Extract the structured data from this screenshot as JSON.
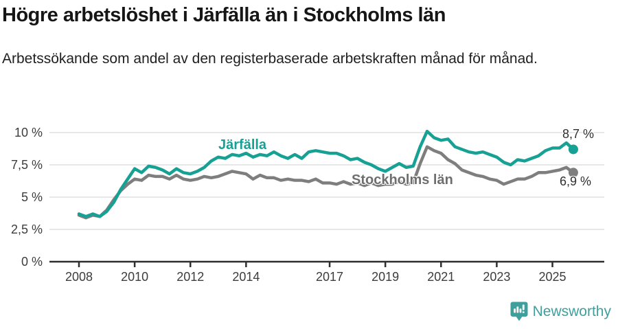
{
  "header": {
    "title": "Högre arbetslöshet i Järfälla än i Stockholms län",
    "subtitle": "Arbetssökande som andel av den registerbaserade arbetskraften månad för månad."
  },
  "colors": {
    "accent_teal": "#17a094",
    "line_gray": "#7e7e7e",
    "grid": "#dfdfdf",
    "axis": "#2e2e2e",
    "axis_text": "#3c3c3c",
    "logo_teal": "#3f9f9d"
  },
  "chart_data": {
    "type": "line",
    "title": "Högre arbetslöshet i Järfälla än i Stockholms län",
    "xlabel": "",
    "ylabel": "",
    "x_start": 2008.0,
    "x_step": 0.25,
    "xlim": [
      2008,
      2026
    ],
    "ylim": [
      0,
      10.5
    ],
    "grid": true,
    "legend_position": "inline-labels",
    "x_ticks": [
      2008,
      2010,
      2012,
      2014,
      2017,
      2019,
      2021,
      2023,
      2025
    ],
    "y_ticks": [
      {
        "v": 0,
        "label": "0 %"
      },
      {
        "v": 2.5,
        "label": "2,5 %"
      },
      {
        "v": 5,
        "label": "5 %"
      },
      {
        "v": 7.5,
        "label": "7,5 %"
      },
      {
        "v": 10,
        "label": "10 %"
      }
    ],
    "series": [
      {
        "name": "Järfälla",
        "color": "#17a094",
        "end_label": "8,7 %",
        "values": [
          3.7,
          3.5,
          3.7,
          3.5,
          3.9,
          4.6,
          5.6,
          6.4,
          7.2,
          6.9,
          7.4,
          7.3,
          7.1,
          6.8,
          7.2,
          6.9,
          6.8,
          7.0,
          7.3,
          7.8,
          8.1,
          8.0,
          8.3,
          8.2,
          8.4,
          8.1,
          8.3,
          8.2,
          8.5,
          8.2,
          8.0,
          8.3,
          8.0,
          8.5,
          8.6,
          8.5,
          8.4,
          8.4,
          8.2,
          7.9,
          8.0,
          7.7,
          7.5,
          7.2,
          7.0,
          7.3,
          7.6,
          7.3,
          7.4,
          8.9,
          10.1,
          9.6,
          9.4,
          9.5,
          8.9,
          8.7,
          8.5,
          8.4,
          8.5,
          8.3,
          8.1,
          7.7,
          7.5,
          7.9,
          7.8,
          8.0,
          8.2,
          8.6,
          8.8,
          8.8,
          9.2,
          8.7
        ]
      },
      {
        "name": "Stockholms län",
        "color": "#7e7e7e",
        "end_label": "6,9 %",
        "values": [
          3.6,
          3.4,
          3.6,
          3.5,
          4.0,
          4.8,
          5.5,
          6.0,
          6.4,
          6.3,
          6.7,
          6.6,
          6.6,
          6.4,
          6.7,
          6.4,
          6.3,
          6.4,
          6.6,
          6.5,
          6.6,
          6.8,
          7.0,
          6.9,
          6.8,
          6.4,
          6.7,
          6.5,
          6.5,
          6.3,
          6.4,
          6.3,
          6.3,
          6.2,
          6.4,
          6.1,
          6.1,
          6.0,
          6.2,
          6.0,
          6.1,
          5.9,
          6.1,
          5.9,
          6.0,
          6.0,
          6.2,
          6.0,
          6.1,
          7.6,
          8.9,
          8.6,
          8.4,
          7.9,
          7.6,
          7.1,
          6.9,
          6.7,
          6.6,
          6.4,
          6.3,
          6.0,
          6.2,
          6.4,
          6.4,
          6.6,
          6.9,
          6.9,
          7.0,
          7.1,
          7.3,
          6.9
        ]
      }
    ]
  },
  "footer": {
    "brand": "Newsworthy"
  }
}
